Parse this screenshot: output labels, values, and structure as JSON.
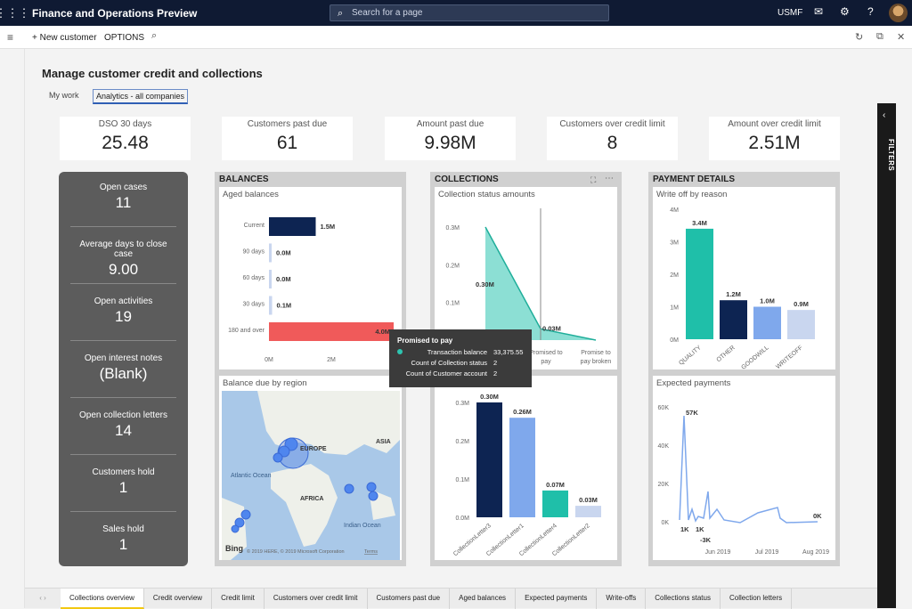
{
  "topbar": {
    "app_title": "Finance and Operations Preview",
    "search_placeholder": "Search for a page",
    "company": "USMF"
  },
  "cmdbar": {
    "new_customer": "New customer",
    "options": "OPTIONS"
  },
  "page": {
    "title": "Manage customer credit and collections",
    "tabs": [
      "My work",
      "Analytics - all companies"
    ]
  },
  "kpis": [
    {
      "label": "DSO 30 days",
      "value": "25.48"
    },
    {
      "label": "Customers past due",
      "value": "61"
    },
    {
      "label": "Amount past due",
      "value": "9.98M"
    },
    {
      "label": "Customers over credit limit",
      "value": "8"
    },
    {
      "label": "Amount over credit limit",
      "value": "2.51M"
    }
  ],
  "side_stats": [
    {
      "label": "Open cases",
      "value": "11"
    },
    {
      "label": "Average days to close case",
      "value": "9.00"
    },
    {
      "label": "Open activities",
      "value": "19"
    },
    {
      "label": "Open interest notes",
      "value": "(Blank)"
    },
    {
      "label": "Open collection letters",
      "value": "14"
    },
    {
      "label": "Customers hold",
      "value": "1"
    },
    {
      "label": "Sales hold",
      "value": "1"
    }
  ],
  "panels": {
    "balances": {
      "title": "BALANCES",
      "aged_title": "Aged balances",
      "map_title": "Balance due by region"
    },
    "collections": {
      "title": "COLLECTIONS",
      "status_title": "Collection status amounts",
      "letters_title": "s"
    },
    "payment": {
      "title": "PAYMENT DETAILS",
      "writeoff_title": "Write off by reason",
      "expected_title": "Expected payments"
    }
  },
  "map": {
    "labels": [
      "EUROPE",
      "ASIA",
      "Atlantic Ocean",
      "AFRICA",
      "Indian Ocean"
    ],
    "bing": "Bing",
    "copyright": "© 2019 HERE, © 2019 Microsoft Corporation",
    "terms": "Terms"
  },
  "tooltip": {
    "title": "Promised to pay",
    "rows": [
      {
        "k": "Transaction balance",
        "v": "33,375.55"
      },
      {
        "k": "Count of Collection status",
        "v": "2"
      },
      {
        "k": "Count of Customer account",
        "v": "2"
      }
    ]
  },
  "filters_label": "FILTERS",
  "bottom_tabs": [
    "Collections overview",
    "Credit overview",
    "Credit limit",
    "Customers over credit limit",
    "Customers past due",
    "Aged balances",
    "Expected payments",
    "Write-offs",
    "Collections status",
    "Collection letters"
  ],
  "chart_data": [
    {
      "type": "bar",
      "title": "Aged balances",
      "orientation": "horizontal",
      "categories": [
        "Current",
        "90 days",
        "60 days",
        "30 days",
        "180 and over"
      ],
      "values": [
        1.5,
        0.0,
        0.0,
        0.1,
        4.0
      ],
      "value_labels": [
        "1.5M",
        "0.0M",
        "0.0M",
        "0.1M",
        "4.0M"
      ],
      "xticks": [
        "0M",
        "2M"
      ],
      "xlim": [
        0,
        4.0
      ],
      "colors": [
        "#0d2452",
        "#c9d6ef",
        "#c9d6ef",
        "#c9d6ef",
        "#f05a5a"
      ]
    },
    {
      "type": "area",
      "title": "Collection status amounts",
      "categories": [
        "",
        "Promised to pay",
        "Promise to pay broken"
      ],
      "values": [
        0.3,
        0.03,
        0.0
      ],
      "value_labels": [
        "0.30M",
        "0.03M",
        ""
      ],
      "yticks": [
        "0.0M",
        "0.1M",
        "0.2M",
        "0.3M"
      ],
      "ylim": [
        0,
        0.3
      ],
      "color": "#2ec4b0"
    },
    {
      "type": "bar",
      "title": "s",
      "categories": [
        "CollectionLetter3",
        "CollectionLetter1",
        "CollectionLetter4",
        "CollectionLetter2"
      ],
      "values": [
        0.3,
        0.26,
        0.07,
        0.03
      ],
      "value_labels": [
        "0.30M",
        "0.26M",
        "0.07M",
        "0.03M"
      ],
      "yticks": [
        "0.0M",
        "0.1M",
        "0.2M",
        "0.3M"
      ],
      "ylim": [
        0,
        0.3
      ],
      "colors": [
        "#0d2452",
        "#7fa8ec",
        "#1fbfa9",
        "#c9d6ef"
      ]
    },
    {
      "type": "bar",
      "title": "Write off by reason",
      "categories": [
        "QUALITY",
        "OTHER",
        "GOODWILL",
        "WRITEOFF"
      ],
      "values": [
        3.4,
        1.2,
        1.0,
        0.9
      ],
      "value_labels": [
        "3.4M",
        "1.2M",
        "1.0M",
        "0.9M"
      ],
      "yticks": [
        "0M",
        "1M",
        "2M",
        "3M",
        "4M"
      ],
      "ylim": [
        0,
        4
      ],
      "colors": [
        "#1fbfa9",
        "#0d2452",
        "#7fa8ec",
        "#c9d6ef"
      ]
    },
    {
      "type": "line",
      "title": "Expected payments",
      "x_ticks": [
        "Jun 2019",
        "Jul 2019",
        "Aug 2019"
      ],
      "yticks": [
        "0K",
        "20K",
        "40K",
        "60K"
      ],
      "ylim": [
        -5,
        60
      ],
      "annotations": [
        "57K",
        "1K",
        "1K",
        "-3K",
        "0K"
      ],
      "color": "#7fa8ec"
    }
  ]
}
